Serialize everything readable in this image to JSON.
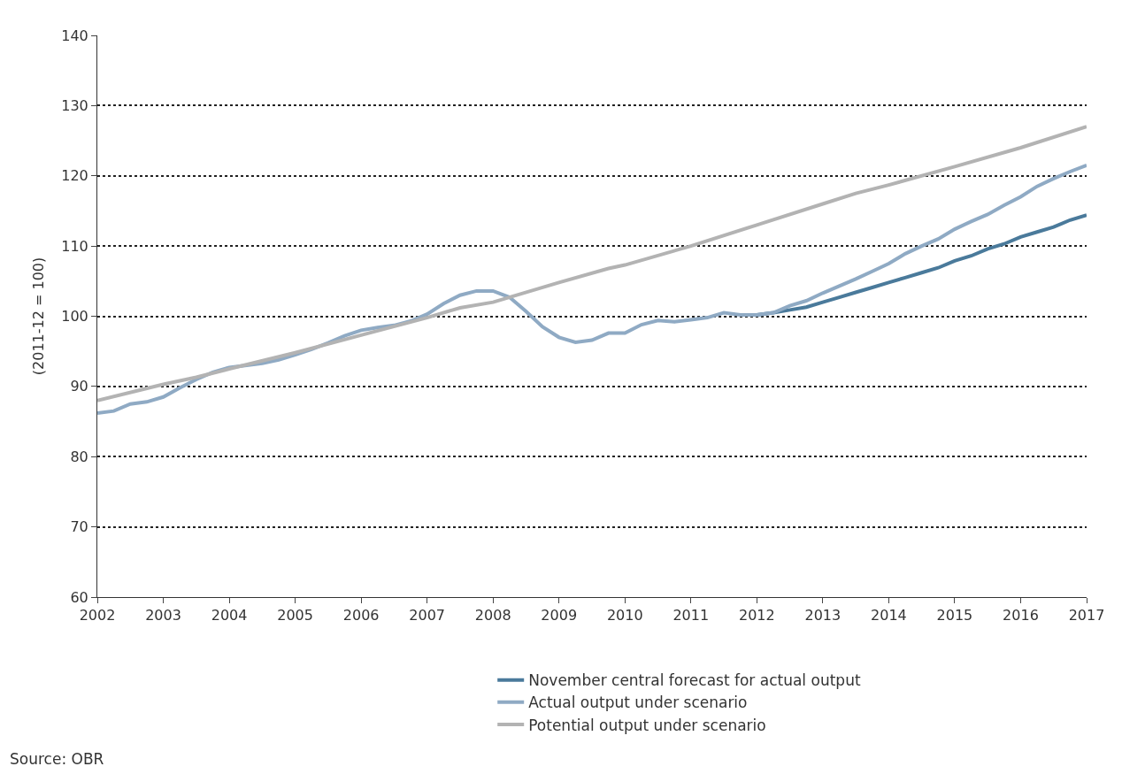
{
  "chart_data": {
    "type": "line",
    "ylabel": "(2011-12 = 100)",
    "annotations": [
      "Source: OBR"
    ],
    "xlim": [
      2002,
      2017
    ],
    "xticks": [
      2002,
      2003,
      2004,
      2005,
      2006,
      2007,
      2008,
      2009,
      2010,
      2011,
      2012,
      2013,
      2014,
      2015,
      2016,
      2017
    ],
    "ylim": [
      60,
      140
    ],
    "yticks": [
      60,
      70,
      80,
      90,
      100,
      110,
      120,
      130,
      140
    ],
    "grid": "y",
    "legend": "bottom",
    "line_style": "solid",
    "series": [
      {
        "name": "November central forecast for actual output",
        "color": "#4a7a9b",
        "x": [
          2012,
          2012.25,
          2012.5,
          2012.75,
          2013,
          2013.25,
          2013.5,
          2013.75,
          2014,
          2014.25,
          2014.5,
          2014.75,
          2015,
          2015.25,
          2015.5,
          2015.75,
          2016,
          2016.25,
          2016.5,
          2016.75,
          2017
        ],
        "values": [
          100.2,
          100.5,
          100.9,
          101.3,
          102.0,
          102.7,
          103.4,
          104.1,
          104.8,
          105.5,
          106.2,
          106.9,
          107.9,
          108.6,
          109.6,
          110.3,
          111.3,
          112.0,
          112.7,
          113.7,
          114.4
        ]
      },
      {
        "name": "Actual output under scenario",
        "color": "#8faac4",
        "x": [
          2002,
          2002.25,
          2002.5,
          2002.75,
          2003,
          2003.25,
          2003.5,
          2003.75,
          2004,
          2004.5,
          2004.75,
          2005,
          2005.25,
          2005.5,
          2005.75,
          2006,
          2006.25,
          2006.5,
          2006.75,
          2007,
          2007.25,
          2007.5,
          2007.75,
          2008,
          2008.25,
          2008.5,
          2008.75,
          2009,
          2009.25,
          2009.5,
          2009.75,
          2010,
          2010.25,
          2010.5,
          2010.75,
          2011,
          2011.25,
          2011.5,
          2011.75,
          2012,
          2012.25,
          2012.5,
          2012.75,
          2013,
          2013.25,
          2013.5,
          2013.75,
          2014,
          2014.25,
          2014.5,
          2014.75,
          2015,
          2015.25,
          2015.5,
          2015.75,
          2016,
          2016.25,
          2016.5,
          2016.75,
          2017
        ],
        "values": [
          86.2,
          86.5,
          87.5,
          87.8,
          88.5,
          89.8,
          91.0,
          92.0,
          92.7,
          93.3,
          93.8,
          94.5,
          95.3,
          96.2,
          97.2,
          98.0,
          98.4,
          98.7,
          99.3,
          100.3,
          101.8,
          103.0,
          103.6,
          103.6,
          102.7,
          100.7,
          98.5,
          97.0,
          96.3,
          96.6,
          97.6,
          97.6,
          98.8,
          99.4,
          99.2,
          99.5,
          99.8,
          100.5,
          100.2,
          100.2,
          100.5,
          101.5,
          102.2,
          103.3,
          104.3,
          105.3,
          106.4,
          107.5,
          108.9,
          110.0,
          111.0,
          112.4,
          113.5,
          114.5,
          115.8,
          117.0,
          118.5,
          119.6,
          120.6,
          121.5
        ]
      },
      {
        "name": "Potential output under scenario",
        "color": "#b3b3b3",
        "x": [
          2002,
          2003,
          2003.5,
          2004,
          2005,
          2006,
          2007,
          2007.5,
          2008,
          2009,
          2009.75,
          2010,
          2011,
          2012,
          2013,
          2013.5,
          2014,
          2015,
          2016,
          2017
        ],
        "values": [
          88.0,
          90.3,
          91.3,
          92.5,
          94.8,
          97.3,
          99.8,
          101.2,
          102.0,
          104.8,
          106.8,
          107.3,
          110.0,
          113.0,
          116.0,
          117.5,
          118.7,
          121.3,
          124.0,
          127.0
        ]
      }
    ]
  }
}
